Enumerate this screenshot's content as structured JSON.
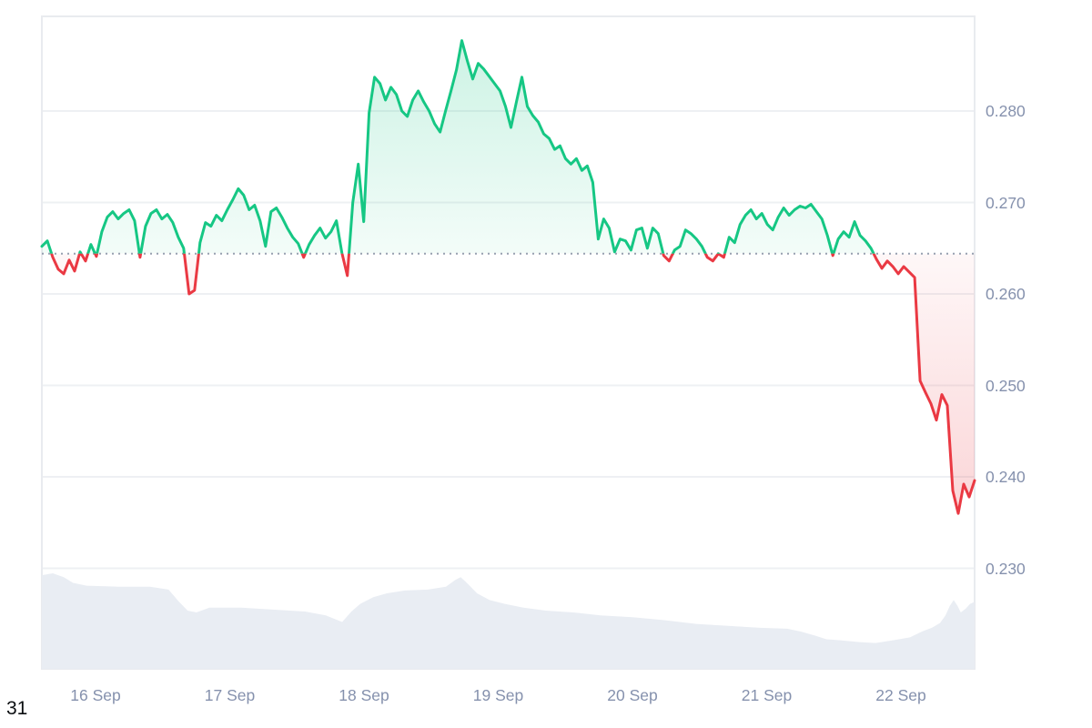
{
  "chart_data": {
    "type": "line",
    "title": "",
    "xlabel": "",
    "ylabel": "",
    "x_unit": "hours from series start (~15 Sep 14:00)",
    "x_tick_labels": [
      "16 Sep",
      "17 Sep",
      "18 Sep",
      "19 Sep",
      "20 Sep",
      "21 Sep",
      "22 Sep"
    ],
    "y_tick_values": [
      0.28,
      0.27,
      0.26,
      0.25,
      0.24,
      0.23
    ],
    "y_tick_labels": [
      "0.280",
      "0.270",
      "0.260",
      "0.250",
      "0.240",
      "0.230"
    ],
    "ylim": [
      0.2287,
      0.2904
    ],
    "baseline_price": 0.2644,
    "grid": "horizontal-only",
    "legend": "none",
    "series": [
      {
        "name": "price",
        "style": "baseline-split-area",
        "values": [
          0.2652,
          0.2658,
          0.264,
          0.2627,
          0.2622,
          0.2637,
          0.2625,
          0.2646,
          0.2636,
          0.2654,
          0.2641,
          0.2668,
          0.2684,
          0.269,
          0.2682,
          0.2688,
          0.2692,
          0.268,
          0.264,
          0.2674,
          0.2688,
          0.2692,
          0.2682,
          0.2687,
          0.2678,
          0.2662,
          0.265,
          0.26,
          0.2604,
          0.2656,
          0.2678,
          0.2674,
          0.2686,
          0.268,
          0.2692,
          0.2703,
          0.2715,
          0.2708,
          0.2692,
          0.2697,
          0.268,
          0.2652,
          0.269,
          0.2694,
          0.2684,
          0.2672,
          0.2662,
          0.2655,
          0.264,
          0.2654,
          0.2664,
          0.2672,
          0.2661,
          0.2668,
          0.268,
          0.2645,
          0.262,
          0.27,
          0.2742,
          0.2679,
          0.2798,
          0.2837,
          0.283,
          0.2812,
          0.2826,
          0.2818,
          0.28,
          0.2794,
          0.2812,
          0.2822,
          0.281,
          0.28,
          0.2786,
          0.2777,
          0.28,
          0.2822,
          0.2845,
          0.2877,
          0.2855,
          0.2835,
          0.2852,
          0.2846,
          0.2838,
          0.283,
          0.2822,
          0.2805,
          0.2782,
          0.281,
          0.2837,
          0.2805,
          0.2795,
          0.2788,
          0.2775,
          0.277,
          0.2758,
          0.2762,
          0.2748,
          0.2742,
          0.2748,
          0.2735,
          0.274,
          0.2722,
          0.266,
          0.2682,
          0.2672,
          0.2646,
          0.266,
          0.2658,
          0.2648,
          0.267,
          0.2672,
          0.265,
          0.2672,
          0.2666,
          0.2642,
          0.2636,
          0.2648,
          0.2652,
          0.267,
          0.2666,
          0.266,
          0.2652,
          0.264,
          0.2636,
          0.2644,
          0.264,
          0.2662,
          0.2656,
          0.2676,
          0.2686,
          0.2692,
          0.2682,
          0.2688,
          0.2676,
          0.267,
          0.2684,
          0.2694,
          0.2686,
          0.2692,
          0.2696,
          0.2694,
          0.2698,
          0.269,
          0.2682,
          0.2664,
          0.2642,
          0.266,
          0.2668,
          0.2662,
          0.2679,
          0.2664,
          0.2658,
          0.265,
          0.2638,
          0.2628,
          0.2636,
          0.263,
          0.2622,
          0.263,
          0.2624,
          0.2618,
          0.2505,
          0.2492,
          0.248,
          0.2462,
          0.249,
          0.2478,
          0.2385,
          0.236,
          0.2392,
          0.2378,
          0.2396
        ]
      },
      {
        "name": "volume",
        "style": "area-bottom",
        "unit": "relative 0-1",
        "points": [
          [
            0,
            0.98
          ],
          [
            2,
            1.0
          ],
          [
            4,
            0.96
          ],
          [
            5.7,
            0.9
          ],
          [
            8.2,
            0.87
          ],
          [
            14,
            0.86
          ],
          [
            19.8,
            0.86
          ],
          [
            23.2,
            0.83
          ],
          [
            25,
            0.71
          ],
          [
            26.7,
            0.61
          ],
          [
            28.3,
            0.59
          ],
          [
            30.7,
            0.64
          ],
          [
            36.5,
            0.64
          ],
          [
            42.3,
            0.62
          ],
          [
            48.2,
            0.6
          ],
          [
            52,
            0.56
          ],
          [
            55,
            0.49
          ],
          [
            56.7,
            0.6
          ],
          [
            58.3,
            0.68
          ],
          [
            60.7,
            0.75
          ],
          [
            63.2,
            0.79
          ],
          [
            66.5,
            0.82
          ],
          [
            70.7,
            0.83
          ],
          [
            74,
            0.86
          ],
          [
            75.7,
            0.93
          ],
          [
            76.7,
            0.96
          ],
          [
            78,
            0.89
          ],
          [
            79.7,
            0.79
          ],
          [
            82,
            0.72
          ],
          [
            84.8,
            0.68
          ],
          [
            88.2,
            0.64
          ],
          [
            92.3,
            0.61
          ],
          [
            97.3,
            0.59
          ],
          [
            102.3,
            0.56
          ],
          [
            108.2,
            0.54
          ],
          [
            114,
            0.51
          ],
          [
            119.8,
            0.47
          ],
          [
            125.7,
            0.45
          ],
          [
            131.5,
            0.43
          ],
          [
            136.5,
            0.42
          ],
          [
            139,
            0.39
          ],
          [
            141.5,
            0.35
          ],
          [
            143.7,
            0.31
          ],
          [
            146,
            0.3
          ],
          [
            149.8,
            0.28
          ],
          [
            152.7,
            0.27
          ],
          [
            156,
            0.3
          ],
          [
            159,
            0.33
          ],
          [
            161.2,
            0.39
          ],
          [
            163,
            0.43
          ],
          [
            164.5,
            0.48
          ],
          [
            165.5,
            0.56
          ],
          [
            166.3,
            0.66
          ],
          [
            167,
            0.72
          ],
          [
            167.7,
            0.66
          ],
          [
            168.3,
            0.59
          ],
          [
            169.2,
            0.63
          ],
          [
            170,
            0.68
          ],
          [
            170.8,
            0.7
          ]
        ]
      }
    ],
    "colors": {
      "up_line": "#16c784",
      "down_line": "#ea3943",
      "up_fill": "rgba(22,199,132,0.22)",
      "up_fill_faded": "rgba(22,199,132,0.05)",
      "down_fill": "rgba(234,57,67,0.22)",
      "down_fill_faded": "rgba(234,57,67,0.04)",
      "volume_fill": "#e9edf3",
      "grid": "#eef0f3",
      "border": "#e9ebef",
      "baseline_dots": "#97a0b0",
      "axis_text": "#8591ad"
    }
  },
  "footer": {
    "page_note": "31"
  }
}
